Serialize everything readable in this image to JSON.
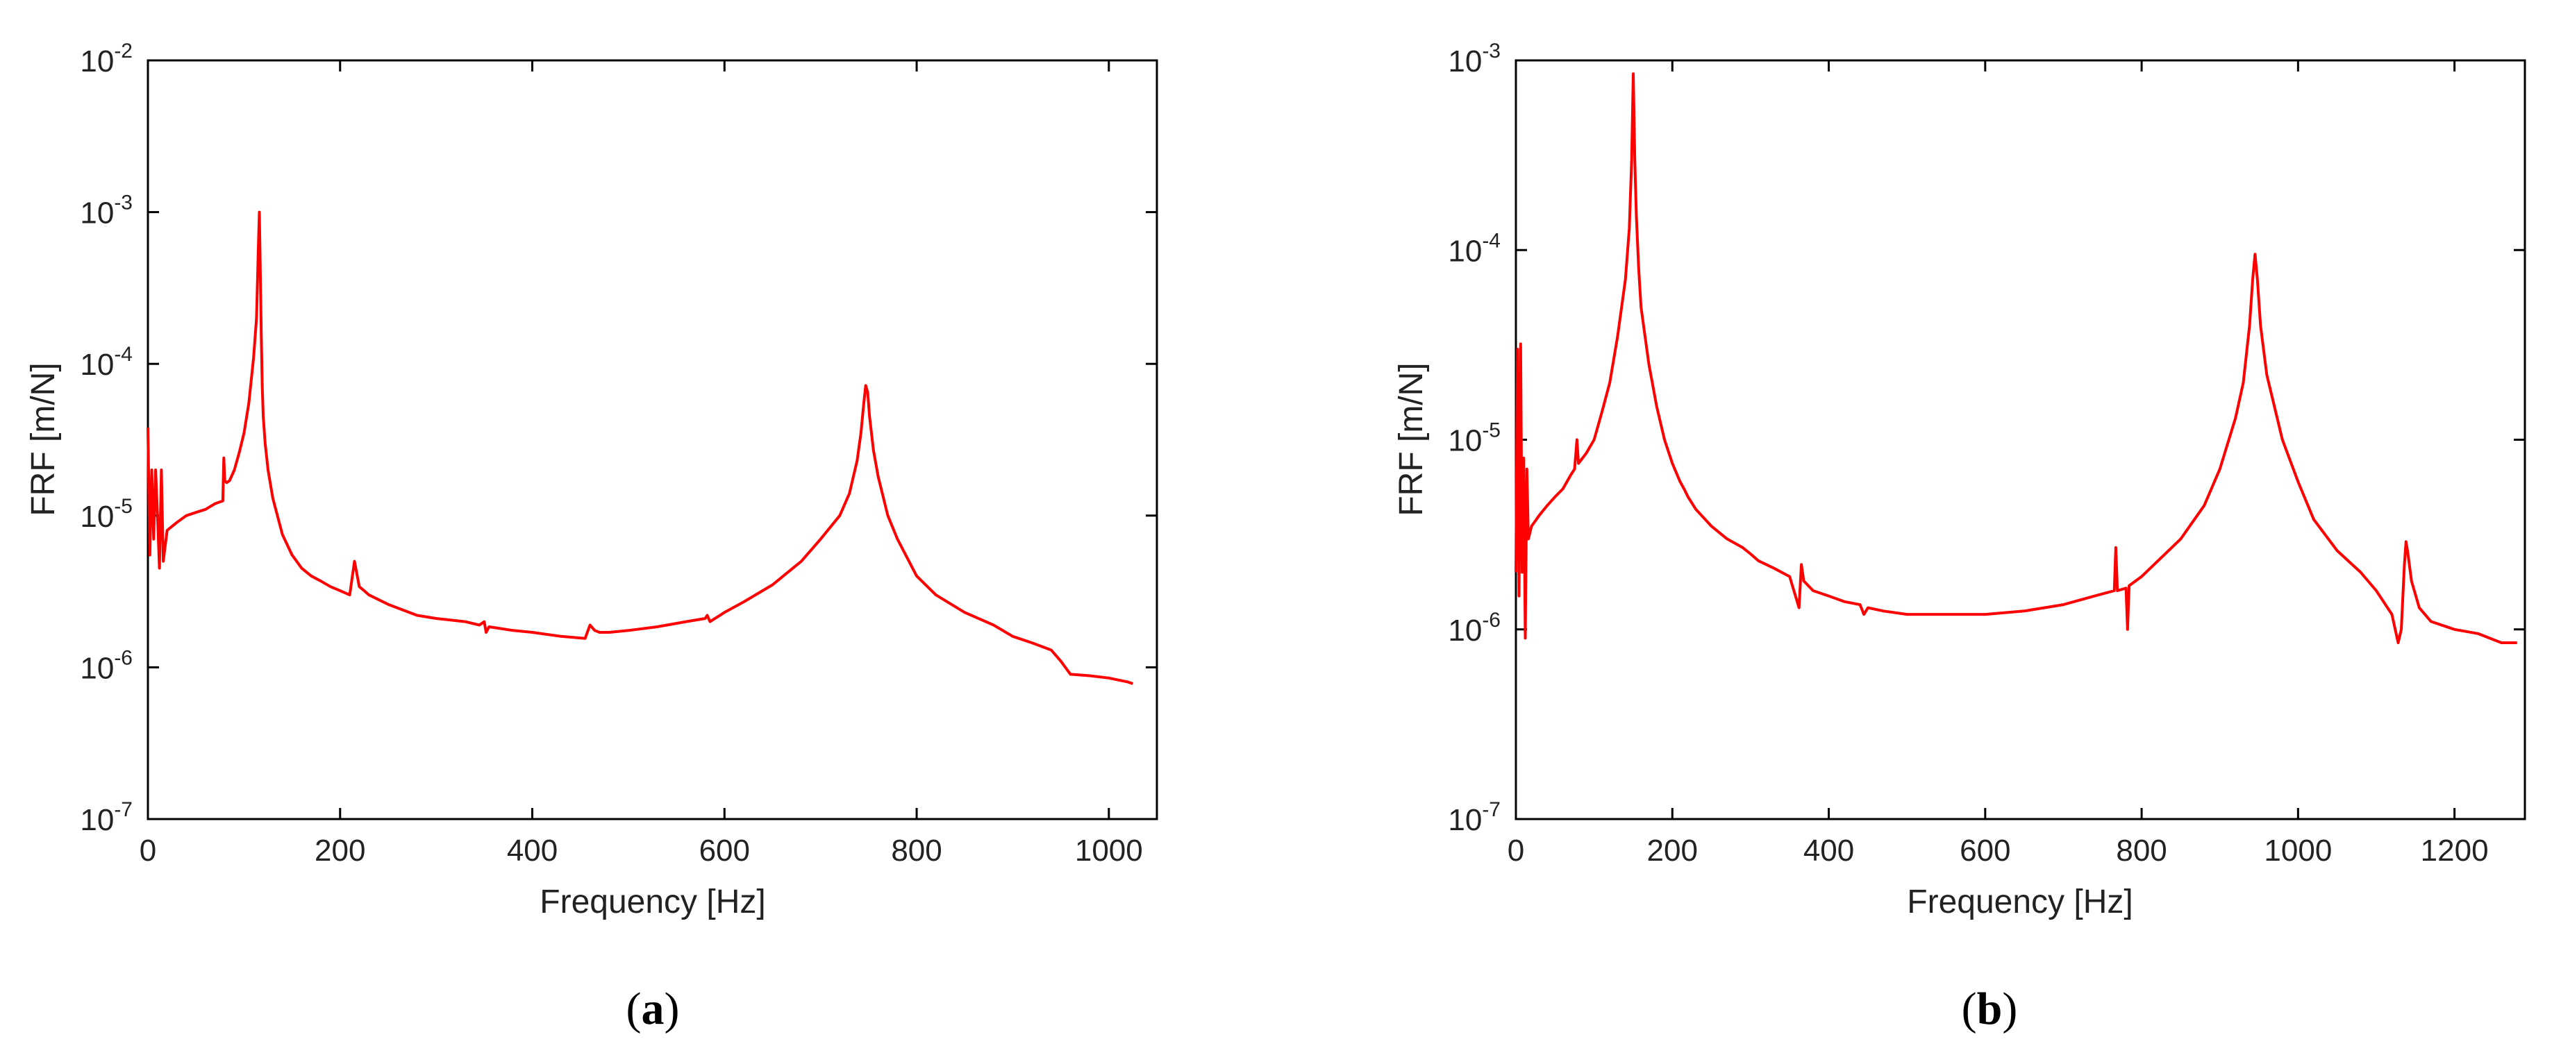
{
  "figure": {
    "line_color": "#ff0000"
  },
  "chart_data": [
    {
      "panel": "a",
      "caption": {
        "open": "(",
        "letter": "a",
        "close": ")"
      },
      "type": "line",
      "xlabel": "Frequency [Hz]",
      "ylabel": "FRF [m/N]",
      "yscale": "log",
      "xlim": [
        0,
        1050
      ],
      "ylim_exp": [
        -7,
        -2
      ],
      "xticks": [
        0,
        200,
        400,
        600,
        800,
        1000
      ],
      "yticks": [
        {
          "base": "10",
          "exp": "-7",
          "value": 1e-07
        },
        {
          "base": "10",
          "exp": "-6",
          "value": 1e-06
        },
        {
          "base": "10",
          "exp": "-5",
          "value": 1e-05
        },
        {
          "base": "10",
          "exp": "-4",
          "value": 0.0001
        },
        {
          "base": "10",
          "exp": "-3",
          "value": 0.001
        },
        {
          "base": "10",
          "exp": "-2",
          "value": 0.01
        }
      ],
      "series": [
        {
          "name": "FRF",
          "x": [
            0,
            2,
            4,
            6,
            8,
            10,
            12,
            14,
            16,
            20,
            30,
            40,
            50,
            60,
            70,
            78,
            79,
            80,
            82,
            85,
            90,
            95,
            100,
            105,
            110,
            113,
            115,
            116,
            117,
            118,
            119,
            120,
            122,
            125,
            130,
            140,
            150,
            160,
            170,
            180,
            190,
            200,
            210,
            215,
            220,
            225,
            230,
            250,
            280,
            300,
            330,
            345,
            350,
            352,
            355,
            380,
            400,
            430,
            455,
            460,
            465,
            470,
            480,
            500,
            530,
            560,
            580,
            582,
            585,
            600,
            620,
            650,
            680,
            700,
            720,
            730,
            738,
            742,
            745,
            747,
            749,
            751,
            755,
            760,
            770,
            780,
            800,
            820,
            850,
            880,
            900,
            920,
            940,
            950,
            960,
            980,
            1000,
            1020,
            1025
          ],
          "y": [
            3.8e-05,
            5.5e-06,
            2e-05,
            7e-06,
            2e-05,
            1e-05,
            4.5e-06,
            2e-05,
            5e-06,
            8e-06,
            9e-06,
            1e-05,
            1.05e-05,
            1.1e-05,
            1.2e-05,
            1.25e-05,
            2.4e-05,
            1.7e-05,
            1.65e-05,
            1.7e-05,
            2e-05,
            2.6e-05,
            3.5e-05,
            5.5e-05,
            0.00011,
            0.0002,
            0.0006,
            0.001,
            0.0004,
            0.00015,
            7e-05,
            4.5e-05,
            3e-05,
            2e-05,
            1.3e-05,
            7.5e-06,
            5.5e-06,
            4.5e-06,
            4e-06,
            3.7e-06,
            3.4e-06,
            3.2e-06,
            3e-06,
            5e-06,
            3.4e-06,
            3.2e-06,
            3e-06,
            2.6e-06,
            2.2e-06,
            2.1e-06,
            2e-06,
            1.9e-06,
            2e-06,
            1.7e-06,
            1.85e-06,
            1.75e-06,
            1.7e-06,
            1.6e-06,
            1.55e-06,
            1.9e-06,
            1.75e-06,
            1.7e-06,
            1.7e-06,
            1.75e-06,
            1.85e-06,
            2e-06,
            2.1e-06,
            2.2e-06,
            2e-06,
            2.3e-06,
            2.7e-06,
            3.5e-06,
            5e-06,
            7e-06,
            1e-05,
            1.4e-05,
            2.3e-05,
            3.5e-05,
            5.5e-05,
            7.2e-05,
            6.5e-05,
            4.5e-05,
            2.7e-05,
            1.8e-05,
            1e-05,
            7e-06,
            4e-06,
            3e-06,
            2.3e-06,
            1.9e-06,
            1.6e-06,
            1.45e-06,
            1.3e-06,
            1.1e-06,
            9e-07,
            8.8e-07,
            8.5e-07,
            8e-07,
            7.8e-07
          ]
        }
      ]
    },
    {
      "panel": "b",
      "caption": {
        "open": "(",
        "letter": "b",
        "close": ")"
      },
      "type": "line",
      "xlabel": "Frequency [Hz]",
      "ylabel": "FRF [m/N]",
      "yscale": "log",
      "xlim": [
        0,
        1290
      ],
      "ylim_exp": [
        -7,
        -3
      ],
      "xticks": [
        0,
        200,
        400,
        600,
        800,
        1000,
        1200
      ],
      "yticks": [
        {
          "base": "10",
          "exp": "-7",
          "value": 1e-07
        },
        {
          "base": "10",
          "exp": "-6",
          "value": 1e-06
        },
        {
          "base": "10",
          "exp": "-5",
          "value": 1e-05
        },
        {
          "base": "10",
          "exp": "-4",
          "value": 0.0001
        },
        {
          "base": "10",
          "exp": "-3",
          "value": 0.001
        }
      ],
      "series": [
        {
          "name": "FRF",
          "x": [
            0,
            2,
            4,
            6,
            8,
            10,
            12,
            14,
            16,
            20,
            30,
            40,
            50,
            60,
            70,
            75,
            78,
            80,
            90,
            100,
            110,
            120,
            130,
            140,
            145,
            148,
            150,
            152,
            154,
            157,
            160,
            170,
            180,
            190,
            200,
            210,
            215,
            220,
            230,
            250,
            270,
            290,
            300,
            310,
            330,
            350,
            362,
            365,
            368,
            380,
            400,
            420,
            440,
            445,
            450,
            470,
            500,
            550,
            600,
            650,
            700,
            740,
            765,
            767,
            769,
            780,
            782,
            784,
            800,
            850,
            880,
            900,
            920,
            930,
            938,
            942,
            945,
            948,
            952,
            960,
            980,
            1000,
            1020,
            1050,
            1080,
            1100,
            1120,
            1128,
            1132,
            1136,
            1138,
            1140,
            1145,
            1155,
            1170,
            1200,
            1230,
            1260,
            1280
          ],
          "y": [
            2e-06,
            3e-05,
            1.5e-06,
            3.2e-05,
            2e-06,
            8e-06,
            9e-07,
            7e-06,
            3e-06,
            3.5e-06,
            4e-06,
            4.5e-06,
            5e-06,
            5.5e-06,
            6.5e-06,
            7e-06,
            1e-05,
            7.5e-06,
            8.5e-06,
            1e-05,
            1.4e-05,
            2e-05,
            3.5e-05,
            7e-05,
            0.00013,
            0.0003,
            0.00085,
            0.0003,
            0.00015,
            8e-05,
            5e-05,
            2.5e-05,
            1.5e-05,
            1e-05,
            7.5e-06,
            6e-06,
            5.5e-06,
            5e-06,
            4.3e-06,
            3.5e-06,
            3e-06,
            2.7e-06,
            2.5e-06,
            2.3e-06,
            2.1e-06,
            1.9e-06,
            1.3e-06,
            2.2e-06,
            1.8e-06,
            1.6e-06,
            1.5e-06,
            1.4e-06,
            1.35e-06,
            1.2e-06,
            1.3e-06,
            1.25e-06,
            1.2e-06,
            1.2e-06,
            1.2e-06,
            1.25e-06,
            1.35e-06,
            1.5e-06,
            1.6e-06,
            2.7e-06,
            1.6e-06,
            1.65e-06,
            1e-06,
            1.7e-06,
            1.9e-06,
            3e-06,
            4.5e-06,
            7e-06,
            1.3e-05,
            2e-05,
            4e-05,
            7e-05,
            9.5e-05,
            7e-05,
            4e-05,
            2.2e-05,
            1e-05,
            6e-06,
            3.8e-06,
            2.6e-06,
            2e-06,
            1.6e-06,
            1.2e-06,
            8.5e-07,
            1e-06,
            2.2e-06,
            2.9e-06,
            2.6e-06,
            1.8e-06,
            1.3e-06,
            1.1e-06,
            1e-06,
            9.5e-07,
            8.5e-07,
            8.5e-07
          ]
        }
      ]
    }
  ]
}
